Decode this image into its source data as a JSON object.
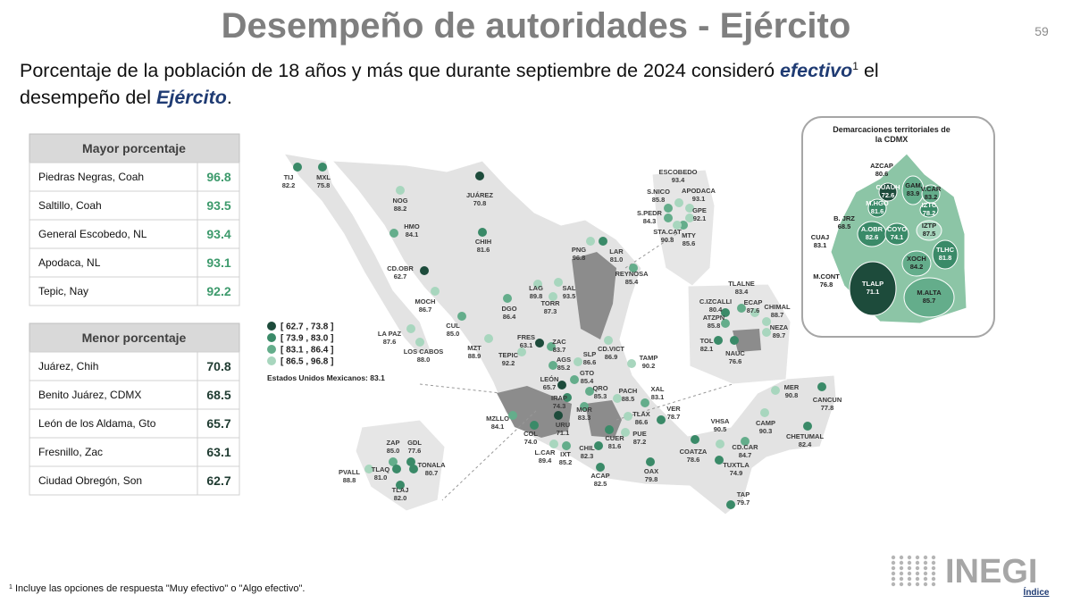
{
  "header": {
    "title": "Desempeño de autoridades - Ejército",
    "page": "59"
  },
  "subtitle": {
    "line1": "Porcentaje de la población de 18 años y más que durante septiembre de 2024 consideró ",
    "emph1": "efectivo",
    "sup": "1",
    "line1_end": " el",
    "line2": "desempeño del ",
    "emph2": "Ejército",
    "line2_end": "."
  },
  "tables": [
    {
      "title": "Mayor porcentaje",
      "rows": [
        [
          "Piedras Negras, Coah",
          "96.8"
        ],
        [
          "Saltillo, Coah",
          "93.5"
        ],
        [
          "General Escobedo, NL",
          "93.4"
        ],
        [
          "Apodaca, NL",
          "93.1"
        ],
        [
          "Tepic, Nay",
          "92.2"
        ]
      ]
    },
    {
      "title": "Menor porcentaje",
      "rows": [
        [
          "Juárez, Chih",
          "70.8"
        ],
        [
          "Benito Juárez, CDMX",
          "68.5"
        ],
        [
          "León de los Aldama, Gto",
          "65.7"
        ],
        [
          "Fresnillo, Zac",
          "63.1"
        ],
        [
          "Ciudad Obregón, Son",
          "62.7"
        ]
      ]
    }
  ],
  "legend": {
    "items": [
      {
        "label": "[ 62.7 , 73.8 ]",
        "min": 62.7,
        "max": 73.8,
        "color": "#1d4b3b"
      },
      {
        "label": "[ 73.9 , 83.0 ]",
        "min": 73.9,
        "max": 83.0,
        "color": "#3a8a68"
      },
      {
        "label": "[ 83.1 , 86.4 ]",
        "min": 83.1,
        "max": 86.4,
        "color": "#64ad8b"
      },
      {
        "label": "[ 86.5 , 96.8 ]",
        "min": 86.5,
        "max": 96.8,
        "color": "#a8d6be"
      }
    ],
    "national": "Estados Unidos Mexicanos: 83.1"
  },
  "map": {
    "cities": [
      {
        "name": "TIJ",
        "value": "82.2"
      },
      {
        "name": "MXL",
        "value": "75.8"
      },
      {
        "name": "NOG",
        "value": "88.2"
      },
      {
        "name": "JUÁREZ",
        "value": "70.8"
      },
      {
        "name": "HMO",
        "value": "84.1"
      },
      {
        "name": "CHIH",
        "value": "81.6"
      },
      {
        "name": "CD.OBR",
        "value": "62.7"
      },
      {
        "name": "MOCH",
        "value": "86.7"
      },
      {
        "name": "LA PAZ",
        "value": "87.6"
      },
      {
        "name": "LOS CABOS",
        "value": "88.0"
      },
      {
        "name": "CUL",
        "value": "85.0"
      },
      {
        "name": "MZT",
        "value": "88.9"
      },
      {
        "name": "DGO",
        "value": "86.4"
      },
      {
        "name": "TEPIC",
        "value": "92.2"
      },
      {
        "name": "FRES",
        "value": "63.1"
      },
      {
        "name": "ZAC",
        "value": "83.7"
      },
      {
        "name": "AGS",
        "value": "85.2"
      },
      {
        "name": "LAG",
        "value": "89.8"
      },
      {
        "name": "TORR",
        "value": "87.3"
      },
      {
        "name": "SAL",
        "value": "93.5"
      },
      {
        "name": "PNG",
        "value": "96.8"
      },
      {
        "name": "LAR",
        "value": "81.0"
      },
      {
        "name": "REYNOSA",
        "value": "85.4"
      },
      {
        "name": "SLP",
        "value": "86.6"
      },
      {
        "name": "CD.VICT",
        "value": "86.9"
      },
      {
        "name": "TAMP",
        "value": "90.2"
      },
      {
        "name": "GTO",
        "value": "85.4"
      },
      {
        "name": "LEÓN",
        "value": "65.7"
      },
      {
        "name": "QRO",
        "value": "85.3"
      },
      {
        "name": "IRAP",
        "value": "74.3"
      },
      {
        "name": "PACH",
        "value": "88.5"
      },
      {
        "name": "XAL",
        "value": "83.1"
      },
      {
        "name": "MOR",
        "value": "83.3"
      },
      {
        "name": "URU",
        "value": "71.1"
      },
      {
        "name": "MZLLO",
        "value": "84.1"
      },
      {
        "name": "COL",
        "value": "74.0"
      },
      {
        "name": "TLAX",
        "value": "86.6"
      },
      {
        "name": "VER",
        "value": "78.7"
      },
      {
        "name": "CUER",
        "value": "81.6"
      },
      {
        "name": "PUE",
        "value": "87.2"
      },
      {
        "name": "CHIL",
        "value": "82.3"
      },
      {
        "name": "IXT",
        "value": "85.2"
      },
      {
        "name": "L.CAR",
        "value": "89.4"
      },
      {
        "name": "ACAP",
        "value": "82.5"
      },
      {
        "name": "OAX",
        "value": "79.8"
      },
      {
        "name": "COATZA",
        "value": "78.6"
      },
      {
        "name": "VHSA",
        "value": "90.5"
      },
      {
        "name": "CD.CAR",
        "value": "84.7"
      },
      {
        "name": "CAMP",
        "value": "90.3"
      },
      {
        "name": "MER",
        "value": "90.8"
      },
      {
        "name": "CANCUN",
        "value": "77.8"
      },
      {
        "name": "CHETUMAL",
        "value": "82.4"
      },
      {
        "name": "TUXTLA",
        "value": "74.9"
      },
      {
        "name": "TAP",
        "value": "79.7"
      },
      {
        "name": "PVALL",
        "value": "88.8"
      },
      {
        "name": "ZAP",
        "value": "85.0"
      },
      {
        "name": "GDL",
        "value": "77.6"
      },
      {
        "name": "TLAQ",
        "value": "81.0"
      },
      {
        "name": "TONALA",
        "value": "80.7"
      },
      {
        "name": "TLAJ",
        "value": "82.0"
      },
      {
        "name": "ESCOBEDO",
        "value": "93.4"
      },
      {
        "name": "S.NICO",
        "value": "85.8"
      },
      {
        "name": "APODACA",
        "value": "93.1"
      },
      {
        "name": "S.PEDR",
        "value": "84.3"
      },
      {
        "name": "GPE",
        "value": "92.1"
      },
      {
        "name": "MTY",
        "value": "85.6"
      },
      {
        "name": "STA.CAT",
        "value": "90.8"
      },
      {
        "name": "TLALNE",
        "value": "83.4"
      },
      {
        "name": "C.IZCALLI",
        "value": "80.4"
      },
      {
        "name": "ATZPN",
        "value": "85.8"
      },
      {
        "name": "ECAP",
        "value": "87.6"
      },
      {
        "name": "CHIMAL",
        "value": "88.7"
      },
      {
        "name": "NEZA",
        "value": "89.7"
      },
      {
        "name": "TOL",
        "value": "82.1"
      },
      {
        "name": "NAUC",
        "value": "76.6"
      }
    ]
  },
  "cdmx": {
    "title_line1": "Demarcaciones territoriales de",
    "title_line2": "la CDMX",
    "delegations": [
      {
        "name": "AZCAP",
        "value": "80.6"
      },
      {
        "name": "GAM",
        "value": "83.9"
      },
      {
        "name": "CUAUH",
        "value": "72.6"
      },
      {
        "name": "V.CAR",
        "value": "83.2"
      },
      {
        "name": "M.HGO",
        "value": "81.6"
      },
      {
        "name": "IZTC",
        "value": "78.2"
      },
      {
        "name": "B. JRZ",
        "value": "68.5"
      },
      {
        "name": "A.OBR",
        "value": "82.6"
      },
      {
        "name": "COYO",
        "value": "74.1"
      },
      {
        "name": "IZTP",
        "value": "87.5"
      },
      {
        "name": "CUAJ",
        "value": "83.1"
      },
      {
        "name": "XOCH",
        "value": "84.2"
      },
      {
        "name": "TLHC",
        "value": "81.8"
      },
      {
        "name": "M.CONT",
        "value": "76.8"
      },
      {
        "name": "TLALP",
        "value": "71.1"
      },
      {
        "name": "M.ALTA",
        "value": "85.7"
      }
    ]
  },
  "footnote": {
    "mark": "1",
    "text": "Incluye las opciones de respuesta \"Muy efectivo\" o \"Algo efectivo\"."
  },
  "logo": {
    "brand": "INEGI",
    "link": "Índice"
  }
}
